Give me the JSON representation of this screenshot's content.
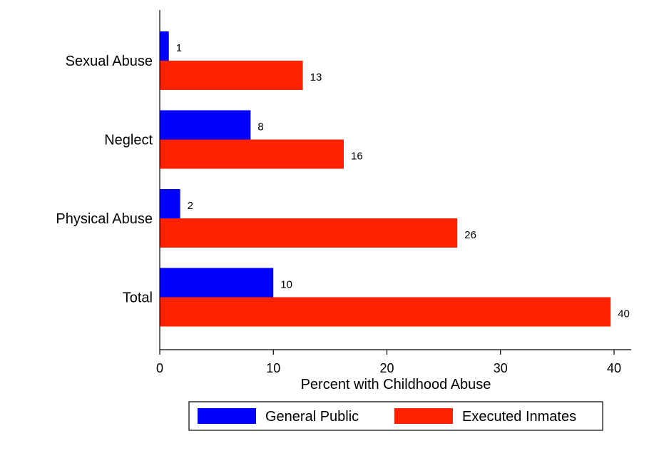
{
  "chart_data": {
    "type": "bar",
    "orientation": "horizontal",
    "categories": [
      "Sexual Abuse",
      "Neglect",
      "Physical Abuse",
      "Total"
    ],
    "series": [
      {
        "name": "General Public",
        "color": "#0000ff",
        "values": [
          0.8,
          8,
          1.8,
          10
        ]
      },
      {
        "name": "Executed Inmates",
        "color": "#ff2200",
        "values": [
          12.6,
          16.2,
          26.2,
          39.7
        ]
      }
    ],
    "value_labels": [
      [
        "1",
        "8",
        "2",
        "10"
      ],
      [
        "13",
        "16",
        "26",
        "40"
      ]
    ],
    "title": "",
    "xlabel": "Percent with Childhood Abuse",
    "ylabel": "",
    "xlim": [
      0,
      41
    ],
    "xticks": [
      0,
      10,
      20,
      30,
      40
    ],
    "xtick_labels": [
      "0",
      "10",
      "20",
      "30",
      "40"
    ],
    "grid": false,
    "legend_position": "bottom"
  }
}
